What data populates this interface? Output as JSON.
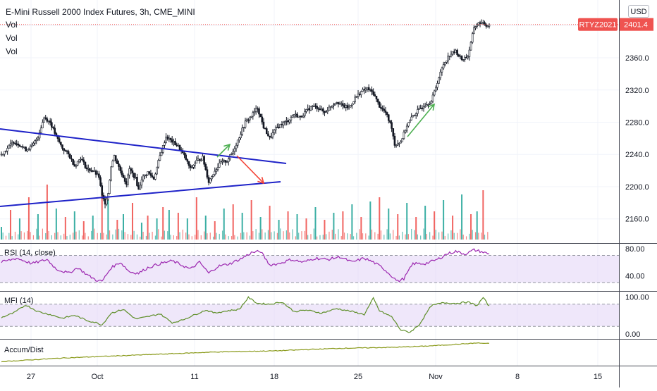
{
  "header": {
    "title": "E-Mini Russell 2000 Index Futures, 3h, CME_MINI",
    "indicator_labels": [
      "Vol",
      "Vol",
      "Vol"
    ],
    "currency_badge": "USD"
  },
  "colors": {
    "up": "#26a69a",
    "down": "#ef5350",
    "vol_up": "#26a69a",
    "vol_down": "#ef5350",
    "candle": "#131722",
    "trendline": "#1e22c8",
    "arrow_up": "#4caf50",
    "arrow_down": "#f44336",
    "rsi": "#9c27b0",
    "mfi": "#5f8f2a",
    "accum": "#8a9a1b",
    "band": "#e1d4f5",
    "price_tag": "#ef5350",
    "grid": "#f0f3fa"
  },
  "chart_data": [
    {
      "type": "candlestick",
      "title": "E-Mini Russell 2000 Index Futures, 3h, CME_MINI",
      "ylim": [
        2130,
        2430
      ],
      "y_ticks": [
        "2400.0",
        "2360.0",
        "2320.0",
        "2280.0",
        "2240.0",
        "2200.0",
        "2160.0"
      ],
      "x_ticks": [
        "27",
        "Oct",
        "11",
        "18",
        "25",
        "Nov",
        "8",
        "15"
      ],
      "last_price": "2401.4",
      "symbol_tag": "RTYZ2021",
      "anchors": [
        [
          0,
          2240
        ],
        [
          4,
          2248
        ],
        [
          8,
          2256
        ],
        [
          12,
          2252
        ],
        [
          16,
          2246
        ],
        [
          20,
          2250
        ],
        [
          24,
          2262
        ],
        [
          28,
          2286
        ],
        [
          32,
          2280
        ],
        [
          36,
          2262
        ],
        [
          40,
          2248
        ],
        [
          44,
          2240
        ],
        [
          48,
          2226
        ],
        [
          52,
          2236
        ],
        [
          56,
          2222
        ],
        [
          60,
          2220
        ],
        [
          64,
          2212
        ],
        [
          66,
          2188
        ],
        [
          68,
          2180
        ],
        [
          70,
          2192
        ],
        [
          72,
          2226
        ],
        [
          74,
          2238
        ],
        [
          78,
          2220
        ],
        [
          82,
          2204
        ],
        [
          84,
          2222
        ],
        [
          88,
          2210
        ],
        [
          90,
          2196
        ],
        [
          92,
          2210
        ],
        [
          96,
          2218
        ],
        [
          100,
          2210
        ],
        [
          104,
          2238
        ],
        [
          108,
          2262
        ],
        [
          112,
          2256
        ],
        [
          116,
          2250
        ],
        [
          120,
          2238
        ],
        [
          124,
          2222
        ],
        [
          128,
          2232
        ],
        [
          132,
          2236
        ],
        [
          136,
          2206
        ],
        [
          140,
          2220
        ],
        [
          144,
          2230
        ],
        [
          148,
          2232
        ],
        [
          152,
          2244
        ],
        [
          156,
          2262
        ],
        [
          160,
          2280
        ],
        [
          164,
          2288
        ],
        [
          168,
          2298
        ],
        [
          172,
          2274
        ],
        [
          176,
          2260
        ],
        [
          180,
          2272
        ],
        [
          184,
          2278
        ],
        [
          188,
          2282
        ],
        [
          192,
          2290
        ],
        [
          196,
          2286
        ],
        [
          200,
          2294
        ],
        [
          204,
          2300
        ],
        [
          208,
          2298
        ],
        [
          212,
          2292
        ],
        [
          216,
          2300
        ],
        [
          220,
          2306
        ],
        [
          224,
          2300
        ],
        [
          228,
          2298
        ],
        [
          232,
          2310
        ],
        [
          236,
          2318
        ],
        [
          240,
          2322
        ],
        [
          244,
          2316
        ],
        [
          248,
          2300
        ],
        [
          252,
          2292
        ],
        [
          256,
          2274
        ],
        [
          258,
          2252
        ],
        [
          262,
          2256
        ],
        [
          266,
          2276
        ],
        [
          270,
          2288
        ],
        [
          274,
          2296
        ],
        [
          278,
          2302
        ],
        [
          282,
          2306
        ],
        [
          286,
          2330
        ],
        [
          290,
          2352
        ],
        [
          294,
          2364
        ],
        [
          298,
          2368
        ],
        [
          302,
          2358
        ],
        [
          306,
          2362
        ],
        [
          308,
          2378
        ],
        [
          310,
          2398
        ],
        [
          314,
          2404
        ],
        [
          318,
          2400
        ],
        [
          320,
          2401.4
        ]
      ],
      "volumes": [
        [
          0,
          18,
          "up"
        ],
        [
          6,
          42,
          "down"
        ],
        [
          12,
          30,
          "up"
        ],
        [
          18,
          60,
          "down"
        ],
        [
          24,
          36,
          "up"
        ],
        [
          30,
          78,
          "down"
        ],
        [
          36,
          44,
          "up"
        ],
        [
          42,
          32,
          "down"
        ],
        [
          48,
          40,
          "up"
        ],
        [
          54,
          26,
          "down"
        ],
        [
          60,
          34,
          "up"
        ],
        [
          66,
          70,
          "down"
        ],
        [
          70,
          56,
          "up"
        ],
        [
          76,
          28,
          "down"
        ],
        [
          80,
          36,
          "up"
        ],
        [
          86,
          52,
          "down"
        ],
        [
          92,
          24,
          "up"
        ],
        [
          96,
          34,
          "down"
        ],
        [
          102,
          30,
          "up"
        ],
        [
          106,
          46,
          "down"
        ],
        [
          110,
          42,
          "up"
        ],
        [
          116,
          38,
          "down"
        ],
        [
          122,
          30,
          "up"
        ],
        [
          128,
          60,
          "down"
        ],
        [
          134,
          34,
          "up"
        ],
        [
          140,
          26,
          "down"
        ],
        [
          146,
          44,
          "up"
        ],
        [
          152,
          50,
          "down"
        ],
        [
          158,
          38,
          "up"
        ],
        [
          164,
          56,
          "down"
        ],
        [
          170,
          32,
          "up"
        ],
        [
          176,
          48,
          "down"
        ],
        [
          182,
          28,
          "up"
        ],
        [
          188,
          40,
          "down"
        ],
        [
          194,
          36,
          "up"
        ],
        [
          200,
          30,
          "down"
        ],
        [
          206,
          46,
          "up"
        ],
        [
          212,
          28,
          "down"
        ],
        [
          218,
          38,
          "up"
        ],
        [
          224,
          40,
          "down"
        ],
        [
          230,
          50,
          "up"
        ],
        [
          236,
          32,
          "down"
        ],
        [
          242,
          54,
          "up"
        ],
        [
          248,
          60,
          "down"
        ],
        [
          254,
          44,
          "up"
        ],
        [
          260,
          36,
          "down"
        ],
        [
          266,
          52,
          "up"
        ],
        [
          272,
          32,
          "down"
        ],
        [
          278,
          48,
          "up"
        ],
        [
          284,
          40,
          "down"
        ],
        [
          290,
          56,
          "up"
        ],
        [
          296,
          34,
          "down"
        ],
        [
          302,
          64,
          "up"
        ],
        [
          308,
          36,
          "down"
        ],
        [
          312,
          40,
          "up"
        ],
        [
          316,
          70,
          "down"
        ]
      ]
    },
    {
      "type": "line",
      "name": "RSI (14, close)",
      "ylim": [
        20,
        85
      ],
      "y_ticks": [
        "80.00",
        "40.00"
      ],
      "bands": [
        70,
        30
      ],
      "anchors": [
        [
          0,
          60
        ],
        [
          10,
          66
        ],
        [
          20,
          58
        ],
        [
          30,
          64
        ],
        [
          36,
          50
        ],
        [
          44,
          44
        ],
        [
          50,
          52
        ],
        [
          56,
          42
        ],
        [
          62,
          34
        ],
        [
          66,
          32
        ],
        [
          72,
          52
        ],
        [
          78,
          60
        ],
        [
          84,
          46
        ],
        [
          90,
          44
        ],
        [
          96,
          52
        ],
        [
          104,
          58
        ],
        [
          112,
          62
        ],
        [
          118,
          56
        ],
        [
          124,
          50
        ],
        [
          130,
          60
        ],
        [
          136,
          44
        ],
        [
          142,
          54
        ],
        [
          150,
          58
        ],
        [
          158,
          66
        ],
        [
          164,
          74
        ],
        [
          170,
          76
        ],
        [
          176,
          56
        ],
        [
          182,
          58
        ],
        [
          190,
          64
        ],
        [
          198,
          60
        ],
        [
          206,
          66
        ],
        [
          214,
          64
        ],
        [
          222,
          68
        ],
        [
          230,
          60
        ],
        [
          238,
          66
        ],
        [
          244,
          60
        ],
        [
          250,
          52
        ],
        [
          256,
          40
        ],
        [
          260,
          32
        ],
        [
          264,
          36
        ],
        [
          270,
          58
        ],
        [
          278,
          58
        ],
        [
          286,
          64
        ],
        [
          292,
          72
        ],
        [
          298,
          76
        ],
        [
          304,
          72
        ],
        [
          310,
          78
        ],
        [
          314,
          76
        ],
        [
          320,
          72
        ]
      ]
    },
    {
      "type": "line",
      "name": "MFI (14)",
      "ylim": [
        -10,
        110
      ],
      "y_ticks": [
        "100.00",
        "0.00"
      ],
      "bands": [
        80,
        20
      ],
      "anchors": [
        [
          0,
          44
        ],
        [
          8,
          56
        ],
        [
          16,
          78
        ],
        [
          24,
          60
        ],
        [
          32,
          52
        ],
        [
          40,
          42
        ],
        [
          48,
          50
        ],
        [
          56,
          36
        ],
        [
          62,
          30
        ],
        [
          66,
          24
        ],
        [
          72,
          56
        ],
        [
          80,
          66
        ],
        [
          88,
          40
        ],
        [
          96,
          46
        ],
        [
          104,
          54
        ],
        [
          112,
          30
        ],
        [
          118,
          36
        ],
        [
          126,
          50
        ],
        [
          134,
          64
        ],
        [
          140,
          56
        ],
        [
          148,
          62
        ],
        [
          156,
          66
        ],
        [
          162,
          98
        ],
        [
          168,
          82
        ],
        [
          176,
          80
        ],
        [
          184,
          86
        ],
        [
          192,
          60
        ],
        [
          200,
          64
        ],
        [
          210,
          56
        ],
        [
          220,
          68
        ],
        [
          230,
          60
        ],
        [
          238,
          52
        ],
        [
          244,
          96
        ],
        [
          248,
          62
        ],
        [
          256,
          46
        ],
        [
          262,
          10
        ],
        [
          268,
          4
        ],
        [
          274,
          24
        ],
        [
          282,
          76
        ],
        [
          290,
          84
        ],
        [
          298,
          82
        ],
        [
          306,
          86
        ],
        [
          312,
          76
        ],
        [
          316,
          98
        ],
        [
          320,
          74
        ]
      ]
    },
    {
      "type": "line",
      "name": "Accum/Dist",
      "anchors": [
        [
          0,
          2
        ],
        [
          20,
          5
        ],
        [
          40,
          8
        ],
        [
          60,
          10
        ],
        [
          80,
          12
        ],
        [
          100,
          14
        ],
        [
          120,
          16
        ],
        [
          140,
          18
        ],
        [
          160,
          19
        ],
        [
          180,
          20
        ],
        [
          200,
          22
        ],
        [
          220,
          24
        ],
        [
          240,
          25
        ],
        [
          260,
          26
        ],
        [
          280,
          28
        ],
        [
          300,
          31
        ],
        [
          312,
          33
        ],
        [
          320,
          32
        ]
      ]
    }
  ]
}
